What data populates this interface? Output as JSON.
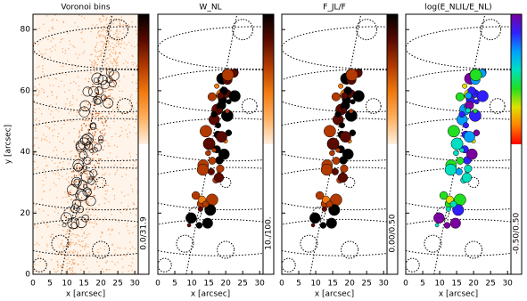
{
  "chart_data": [
    {
      "type": "image",
      "title": "Voronoi bins",
      "xlabel": "x [arcsec]",
      "ylabel": "y [arcsec]",
      "colorbar_label": "0.0/31.9",
      "colormap": "heat",
      "xlim": [
        0,
        31
      ],
      "xticks": [
        0,
        5,
        10,
        15,
        20,
        25,
        30
      ],
      "ylim": [
        0,
        85
      ],
      "yticks": [
        0,
        20,
        40,
        60,
        80
      ]
    },
    {
      "type": "image",
      "title": "W_NL",
      "xlabel": "x [arcsec]",
      "colorbar_label": "10./100.",
      "colormap": "heat",
      "xlim": [
        0,
        31
      ],
      "xticks": [
        0,
        5,
        10,
        15,
        20,
        25,
        30
      ]
    },
    {
      "type": "image",
      "title": "F_JL/F",
      "xlabel": "x [arcsec]",
      "colorbar_label": "0.00/0.50",
      "colormap": "heat",
      "xlim": [
        0,
        31
      ],
      "xticks": [
        0,
        5,
        10,
        15,
        20,
        25,
        30
      ]
    },
    {
      "type": "image",
      "title": "log(E_NLIL/E_NL)",
      "xlabel": "x [arcsec]",
      "colorbar_label": "-0.50/0.50",
      "colormap": "rainbow",
      "xlim": [
        0,
        31
      ],
      "xticks": [
        0,
        5,
        10,
        15,
        20,
        25,
        30
      ]
    }
  ]
}
